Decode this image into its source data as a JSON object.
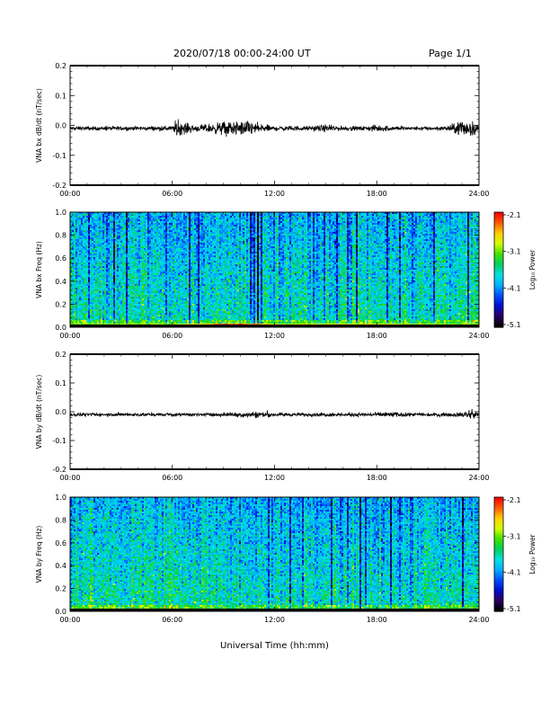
{
  "header": {
    "title": "2020/07/18  00:00-24:00 UT",
    "page": "Page 1/1"
  },
  "x_axis_label": "Universal Time (hh:mm)",
  "colors": {
    "trace": "#000000",
    "colormap": [
      "#000000",
      "#2a0060",
      "#0010d0",
      "#0050ff",
      "#00b0ff",
      "#00e0e0",
      "#00d060",
      "#40e000",
      "#d0ff00",
      "#ffd000",
      "#ff6000",
      "#ff0000"
    ]
  },
  "chart_data": [
    {
      "type": "line",
      "name": "bx-dbdt",
      "ylabel": "VNA bx dB/dt (nT/sec)",
      "xlim": [
        0,
        24
      ],
      "ylim": [
        -0.2,
        0.2
      ],
      "xticks": [
        "00:00",
        "06:00",
        "12:00",
        "18:00",
        "24:00"
      ],
      "yticks": [
        "-0.2",
        "-0.1",
        "0.0",
        "0.1",
        "0.2"
      ],
      "ytick_values": [
        -0.2,
        -0.1,
        0.0,
        0.1,
        0.2
      ],
      "noise_envelope": {
        "x": [
          0,
          2,
          4,
          6,
          6.2,
          7.5,
          8.5,
          9.5,
          10.5,
          11.2,
          12,
          14,
          15,
          16,
          17,
          18,
          19,
          20,
          21,
          22,
          22.6,
          23,
          23.5,
          24
        ],
        "amplitude": [
          0.008,
          0.008,
          0.008,
          0.01,
          0.03,
          0.012,
          0.022,
          0.03,
          0.03,
          0.018,
          0.01,
          0.009,
          0.014,
          0.009,
          0.008,
          0.014,
          0.009,
          0.007,
          0.008,
          0.009,
          0.02,
          0.04,
          0.035,
          0.012
        ]
      }
    },
    {
      "type": "heatmap",
      "name": "bx-spectrogram",
      "ylabel": "VNA bx Freq (Hz)",
      "colorbar_label": "Log₁₀ Power",
      "xlim": [
        0,
        24
      ],
      "ylim": [
        0,
        1
      ],
      "xticks": [
        "00:00",
        "06:00",
        "12:00",
        "18:00",
        "24:00"
      ],
      "yticks": [
        "0.0",
        "0.2",
        "0.4",
        "0.6",
        "0.8",
        "1.0"
      ],
      "ytick_values": [
        0,
        0.2,
        0.4,
        0.6,
        0.8,
        1.0
      ],
      "colorbar_range": [
        -5.1,
        -2.1
      ],
      "colorbar_ticks": [
        "-2.1",
        "-3.1",
        "-4.1",
        "-5.1"
      ],
      "low_freq_power": {
        "x": [
          0,
          6,
          8,
          9,
          10,
          11,
          12,
          14,
          16,
          18,
          20,
          24
        ],
        "value": [
          -3.1,
          -3.0,
          -2.7,
          -2.4,
          -2.3,
          -2.6,
          -2.9,
          -2.9,
          -2.8,
          -2.8,
          -3.0,
          -3.1
        ]
      },
      "vertical_dark_streaks_hours": [
        1.1,
        2.2,
        2.6,
        3.3,
        5.6,
        7.0,
        7.5,
        10.6,
        10.8,
        11.0,
        11.2,
        11.9,
        12.3,
        14.0,
        14.3,
        14.5,
        14.9,
        15.6,
        16.3,
        16.8,
        17.4,
        18.6,
        19.3,
        20.1,
        21.3,
        23.3
      ]
    },
    {
      "type": "line",
      "name": "by-dbdt",
      "ylabel": "VNA by dB/dt (nT/sec)",
      "xlim": [
        0,
        24
      ],
      "ylim": [
        -0.2,
        0.2
      ],
      "xticks": [
        "00:00",
        "06:00",
        "12:00",
        "18:00",
        "24:00"
      ],
      "yticks": [
        "-0.2",
        "-0.1",
        "0.0",
        "0.1",
        "0.2"
      ],
      "ytick_values": [
        -0.2,
        -0.1,
        0.0,
        0.1,
        0.2
      ],
      "noise_envelope": {
        "x": [
          0,
          2,
          4,
          6,
          8,
          9.5,
          10.5,
          11.2,
          12,
          14,
          16,
          16.5,
          18,
          18.5,
          19,
          20,
          22,
          23,
          23.4,
          24
        ],
        "amplitude": [
          0.007,
          0.007,
          0.007,
          0.006,
          0.007,
          0.009,
          0.012,
          0.014,
          0.008,
          0.007,
          0.008,
          0.01,
          0.008,
          0.014,
          0.01,
          0.007,
          0.008,
          0.01,
          0.022,
          0.009
        ]
      }
    },
    {
      "type": "heatmap",
      "name": "by-spectrogram",
      "ylabel": "VNA by Freq (Hz)",
      "colorbar_label": "Log₁₀ Power",
      "xlim": [
        0,
        24
      ],
      "ylim": [
        0,
        1
      ],
      "xticks": [
        "00:00",
        "06:00",
        "12:00",
        "18:00",
        "24:00"
      ],
      "yticks": [
        "0.0",
        "0.2",
        "0.4",
        "0.6",
        "0.8",
        "1.0"
      ],
      "ytick_values": [
        0,
        0.2,
        0.4,
        0.6,
        0.8,
        1.0
      ],
      "colorbar_range": [
        -5.1,
        -2.1
      ],
      "colorbar_ticks": [
        "-2.1",
        "-3.1",
        "-4.1",
        "-5.1"
      ],
      "low_freq_power": {
        "x": [
          0,
          6,
          9,
          10,
          12,
          14,
          16,
          18,
          20,
          24
        ],
        "value": [
          -3.1,
          -3.1,
          -2.9,
          -2.8,
          -2.9,
          -2.9,
          -2.8,
          -2.9,
          -3.0,
          -3.1
        ]
      },
      "vertical_dark_streaks_hours": [
        11.6,
        12.9,
        13.6,
        14.5,
        15.3,
        15.9,
        16.3,
        17.0,
        17.3,
        18.3,
        18.8,
        19.3,
        20.0,
        23.0
      ]
    }
  ]
}
